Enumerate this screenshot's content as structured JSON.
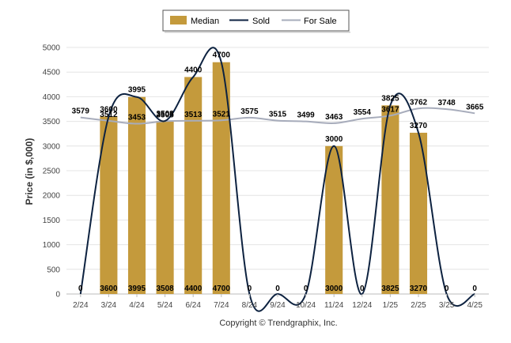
{
  "chart_data": {
    "type": "bar",
    "categories": [
      "2/24",
      "3/24",
      "4/24",
      "5/24",
      "6/24",
      "7/24",
      "8/24",
      "9/24",
      "10/24",
      "11/24",
      "12/24",
      "1/25",
      "2/25",
      "3/25",
      "4/25"
    ],
    "series": [
      {
        "name": "Median",
        "type": "bar",
        "color": "#c49a3c",
        "values": [
          0,
          3600,
          3995,
          3508,
          4400,
          4700,
          0,
          0,
          0,
          3000,
          0,
          3825,
          3270,
          0,
          0
        ]
      },
      {
        "name": "Sold",
        "type": "line",
        "color": "#0d2240",
        "values": [
          0,
          3600,
          3995,
          3508,
          4400,
          4700,
          0,
          0,
          0,
          3000,
          0,
          3825,
          3270,
          0,
          0
        ]
      },
      {
        "name": "For Sale",
        "type": "line",
        "color": "#a7acbb",
        "values": [
          3579,
          3512,
          3453,
          3505,
          3513,
          3521,
          3575,
          3515,
          3499,
          3463,
          3554,
          3617,
          3762,
          3748,
          3665
        ]
      }
    ],
    "ylabel": "Price (in $,000)",
    "ylim": [
      0,
      5000
    ],
    "yticks": [
      0,
      500,
      1000,
      1500,
      2000,
      2500,
      3000,
      3500,
      4000,
      4500,
      5000
    ],
    "grid": true,
    "legend_position": "top-center"
  },
  "footer": "Copyright © Trendgraphix, Inc."
}
